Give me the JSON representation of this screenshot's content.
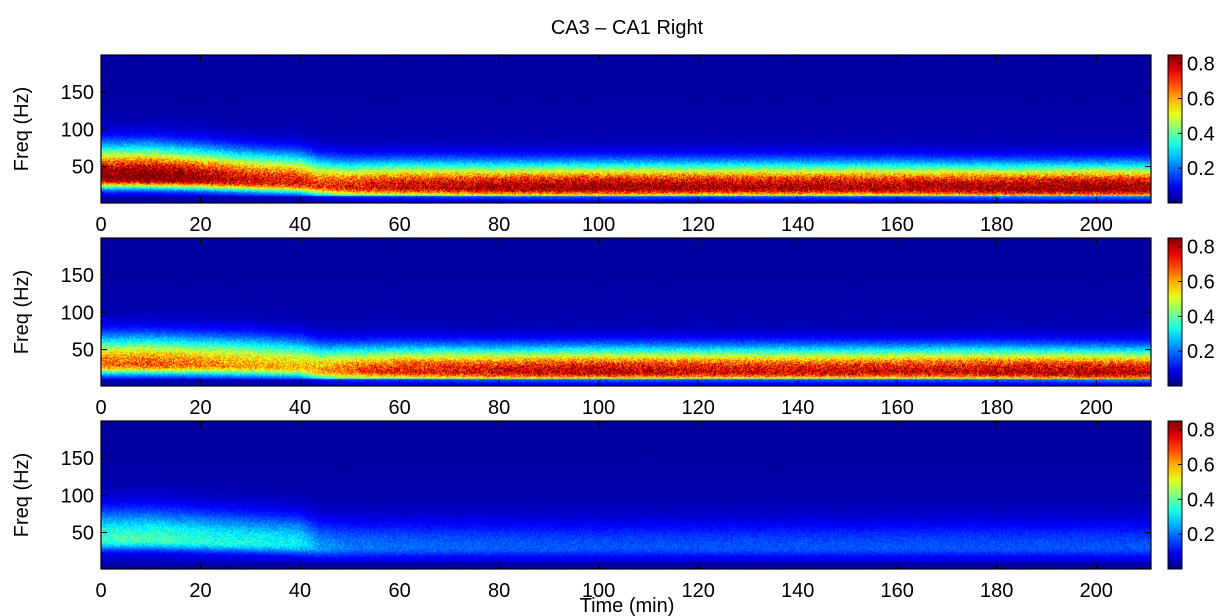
{
  "figure": {
    "title": "CA3 – CA1 Right",
    "xlabel": "Time (min)"
  },
  "chart_data": [
    {
      "type": "heatmap",
      "title": "CA3 – CA1 Right",
      "xlabel": "",
      "ylabel": "Freq (Hz)",
      "xlim": [
        0,
        211
      ],
      "ylim": [
        1,
        200
      ],
      "xticks": [
        0,
        20,
        40,
        60,
        80,
        100,
        120,
        140,
        160,
        180,
        200
      ],
      "yticks": [
        50,
        100,
        150
      ],
      "clim": [
        0,
        0.85
      ],
      "colorbar_ticks": [
        0.2,
        0.4,
        0.6,
        0.8
      ],
      "colormap": "jet",
      "band_profile": {
        "time_min": [
          0,
          10,
          20,
          30,
          40,
          44,
          50,
          60,
          80,
          100,
          120,
          140,
          160,
          180,
          200,
          211
        ],
        "peak_freq_hz": [
          35,
          35,
          33,
          30,
          28,
          24,
          22,
          22,
          21,
          21,
          21,
          21,
          21,
          20,
          20,
          20
        ],
        "peak_value": [
          0.85,
          0.88,
          0.8,
          0.72,
          0.7,
          0.65,
          0.68,
          0.73,
          0.78,
          0.8,
          0.78,
          0.78,
          0.77,
          0.8,
          0.82,
          0.8
        ]
      }
    },
    {
      "type": "heatmap",
      "title": "",
      "xlabel": "",
      "ylabel": "Freq (Hz)",
      "xlim": [
        0,
        211
      ],
      "ylim": [
        1,
        200
      ],
      "xticks": [
        0,
        20,
        40,
        60,
        80,
        100,
        120,
        140,
        160,
        180,
        200
      ],
      "yticks": [
        50,
        100,
        150
      ],
      "clim": [
        0,
        0.85
      ],
      "colorbar_ticks": [
        0.2,
        0.4,
        0.6,
        0.8
      ],
      "colormap": "jet",
      "band_profile": {
        "time_min": [
          0,
          10,
          20,
          30,
          40,
          44,
          50,
          60,
          80,
          100,
          120,
          140,
          160,
          180,
          200,
          211
        ],
        "peak_freq_hz": [
          30,
          30,
          29,
          28,
          26,
          22,
          21,
          21,
          20,
          20,
          20,
          20,
          20,
          20,
          19,
          19
        ],
        "peak_value": [
          0.6,
          0.62,
          0.58,
          0.55,
          0.52,
          0.55,
          0.62,
          0.68,
          0.72,
          0.75,
          0.72,
          0.72,
          0.72,
          0.74,
          0.76,
          0.74
        ]
      }
    },
    {
      "type": "heatmap",
      "title": "",
      "xlabel": "Time (min)",
      "ylabel": "Freq (Hz)",
      "xlim": [
        0,
        211
      ],
      "ylim": [
        1,
        200
      ],
      "xticks": [
        0,
        20,
        40,
        60,
        80,
        100,
        120,
        140,
        160,
        180,
        200
      ],
      "yticks": [
        50,
        100,
        150
      ],
      "clim": [
        0,
        0.85
      ],
      "colorbar_ticks": [
        0.2,
        0.4,
        0.6,
        0.8
      ],
      "colormap": "jet",
      "band_profile": {
        "time_min": [
          0,
          10,
          20,
          30,
          40,
          44,
          50,
          60,
          80,
          100,
          120,
          140,
          160,
          180,
          200,
          211
        ],
        "peak_freq_hz": [
          40,
          40,
          38,
          36,
          34,
          30,
          30,
          30,
          30,
          30,
          30,
          30,
          30,
          30,
          30,
          30
        ],
        "peak_value": [
          0.32,
          0.33,
          0.3,
          0.28,
          0.26,
          0.18,
          0.15,
          0.14,
          0.13,
          0.12,
          0.12,
          0.12,
          0.12,
          0.12,
          0.12,
          0.12
        ]
      }
    }
  ]
}
